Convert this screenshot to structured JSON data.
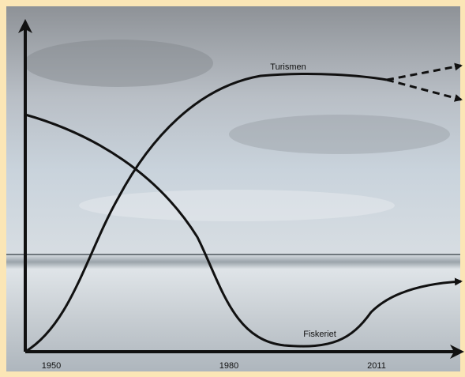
{
  "axis": {
    "x_labels": [
      "1950",
      "1980",
      "2011"
    ]
  },
  "curves": {
    "tourism": "Turismen",
    "fishing": "Fiskeriet"
  }
}
